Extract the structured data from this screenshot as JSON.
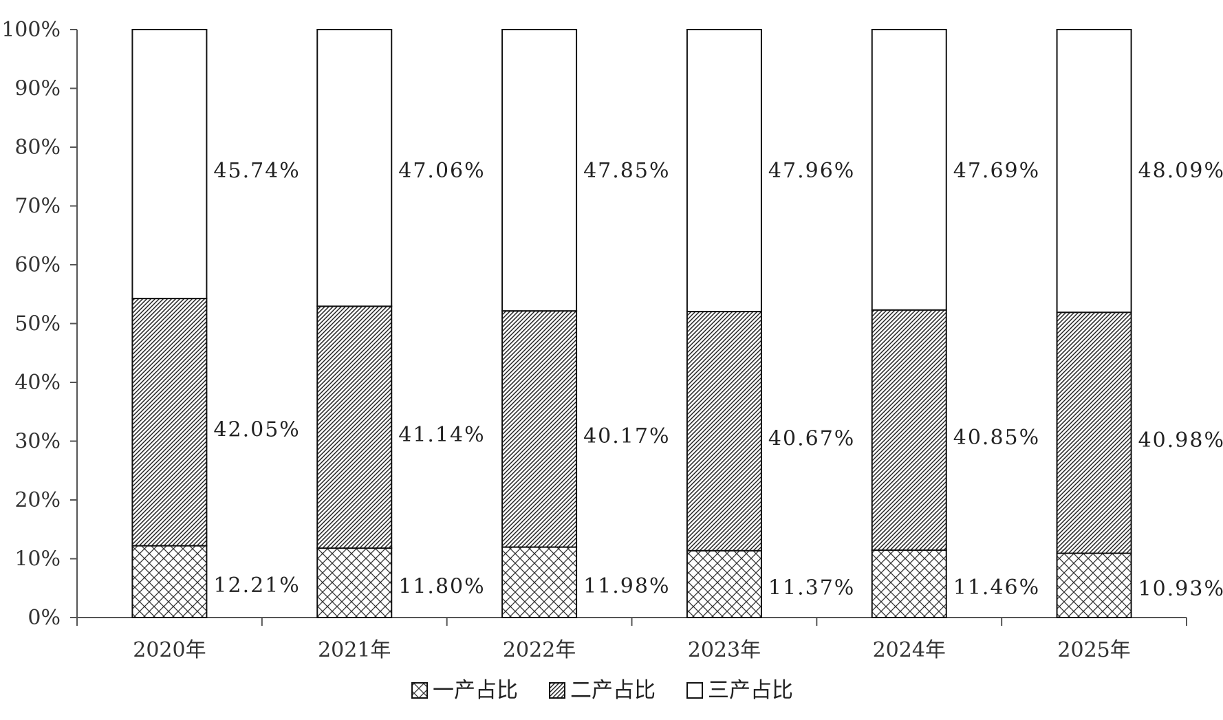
{
  "chart_data": {
    "type": "bar",
    "stacked": true,
    "categories": [
      "2020年",
      "2021年",
      "2022年",
      "2023年",
      "2024年",
      "2025年"
    ],
    "series": [
      {
        "name": "一产占比",
        "values": [
          12.21,
          11.8,
          11.98,
          11.37,
          11.46,
          10.93
        ],
        "labels": [
          "12.21%",
          "11.80%",
          "11.98%",
          "11.37%",
          "11.46%",
          "10.93%"
        ],
        "pattern": "crosshatch"
      },
      {
        "name": "二产占比",
        "values": [
          42.05,
          41.14,
          40.17,
          40.67,
          40.85,
          40.98
        ],
        "labels": [
          "42.05%",
          "41.14%",
          "40.17%",
          "40.67%",
          "40.85%",
          "40.98%"
        ],
        "pattern": "diagonal"
      },
      {
        "name": "三产占比",
        "values": [
          45.74,
          47.06,
          47.85,
          47.96,
          47.69,
          48.09
        ],
        "labels": [
          "45.74%",
          "47.06%",
          "47.85%",
          "47.96%",
          "47.69%",
          "48.09%"
        ],
        "pattern": "white"
      }
    ],
    "ylim": [
      0,
      100
    ],
    "yticks": [
      "0%",
      "10%",
      "20%",
      "30%",
      "40%",
      "50%",
      "60%",
      "70%",
      "80%",
      "90%",
      "100%"
    ],
    "grid": false,
    "legend": "bottom",
    "title": "",
    "xlabel": "",
    "ylabel": ""
  }
}
